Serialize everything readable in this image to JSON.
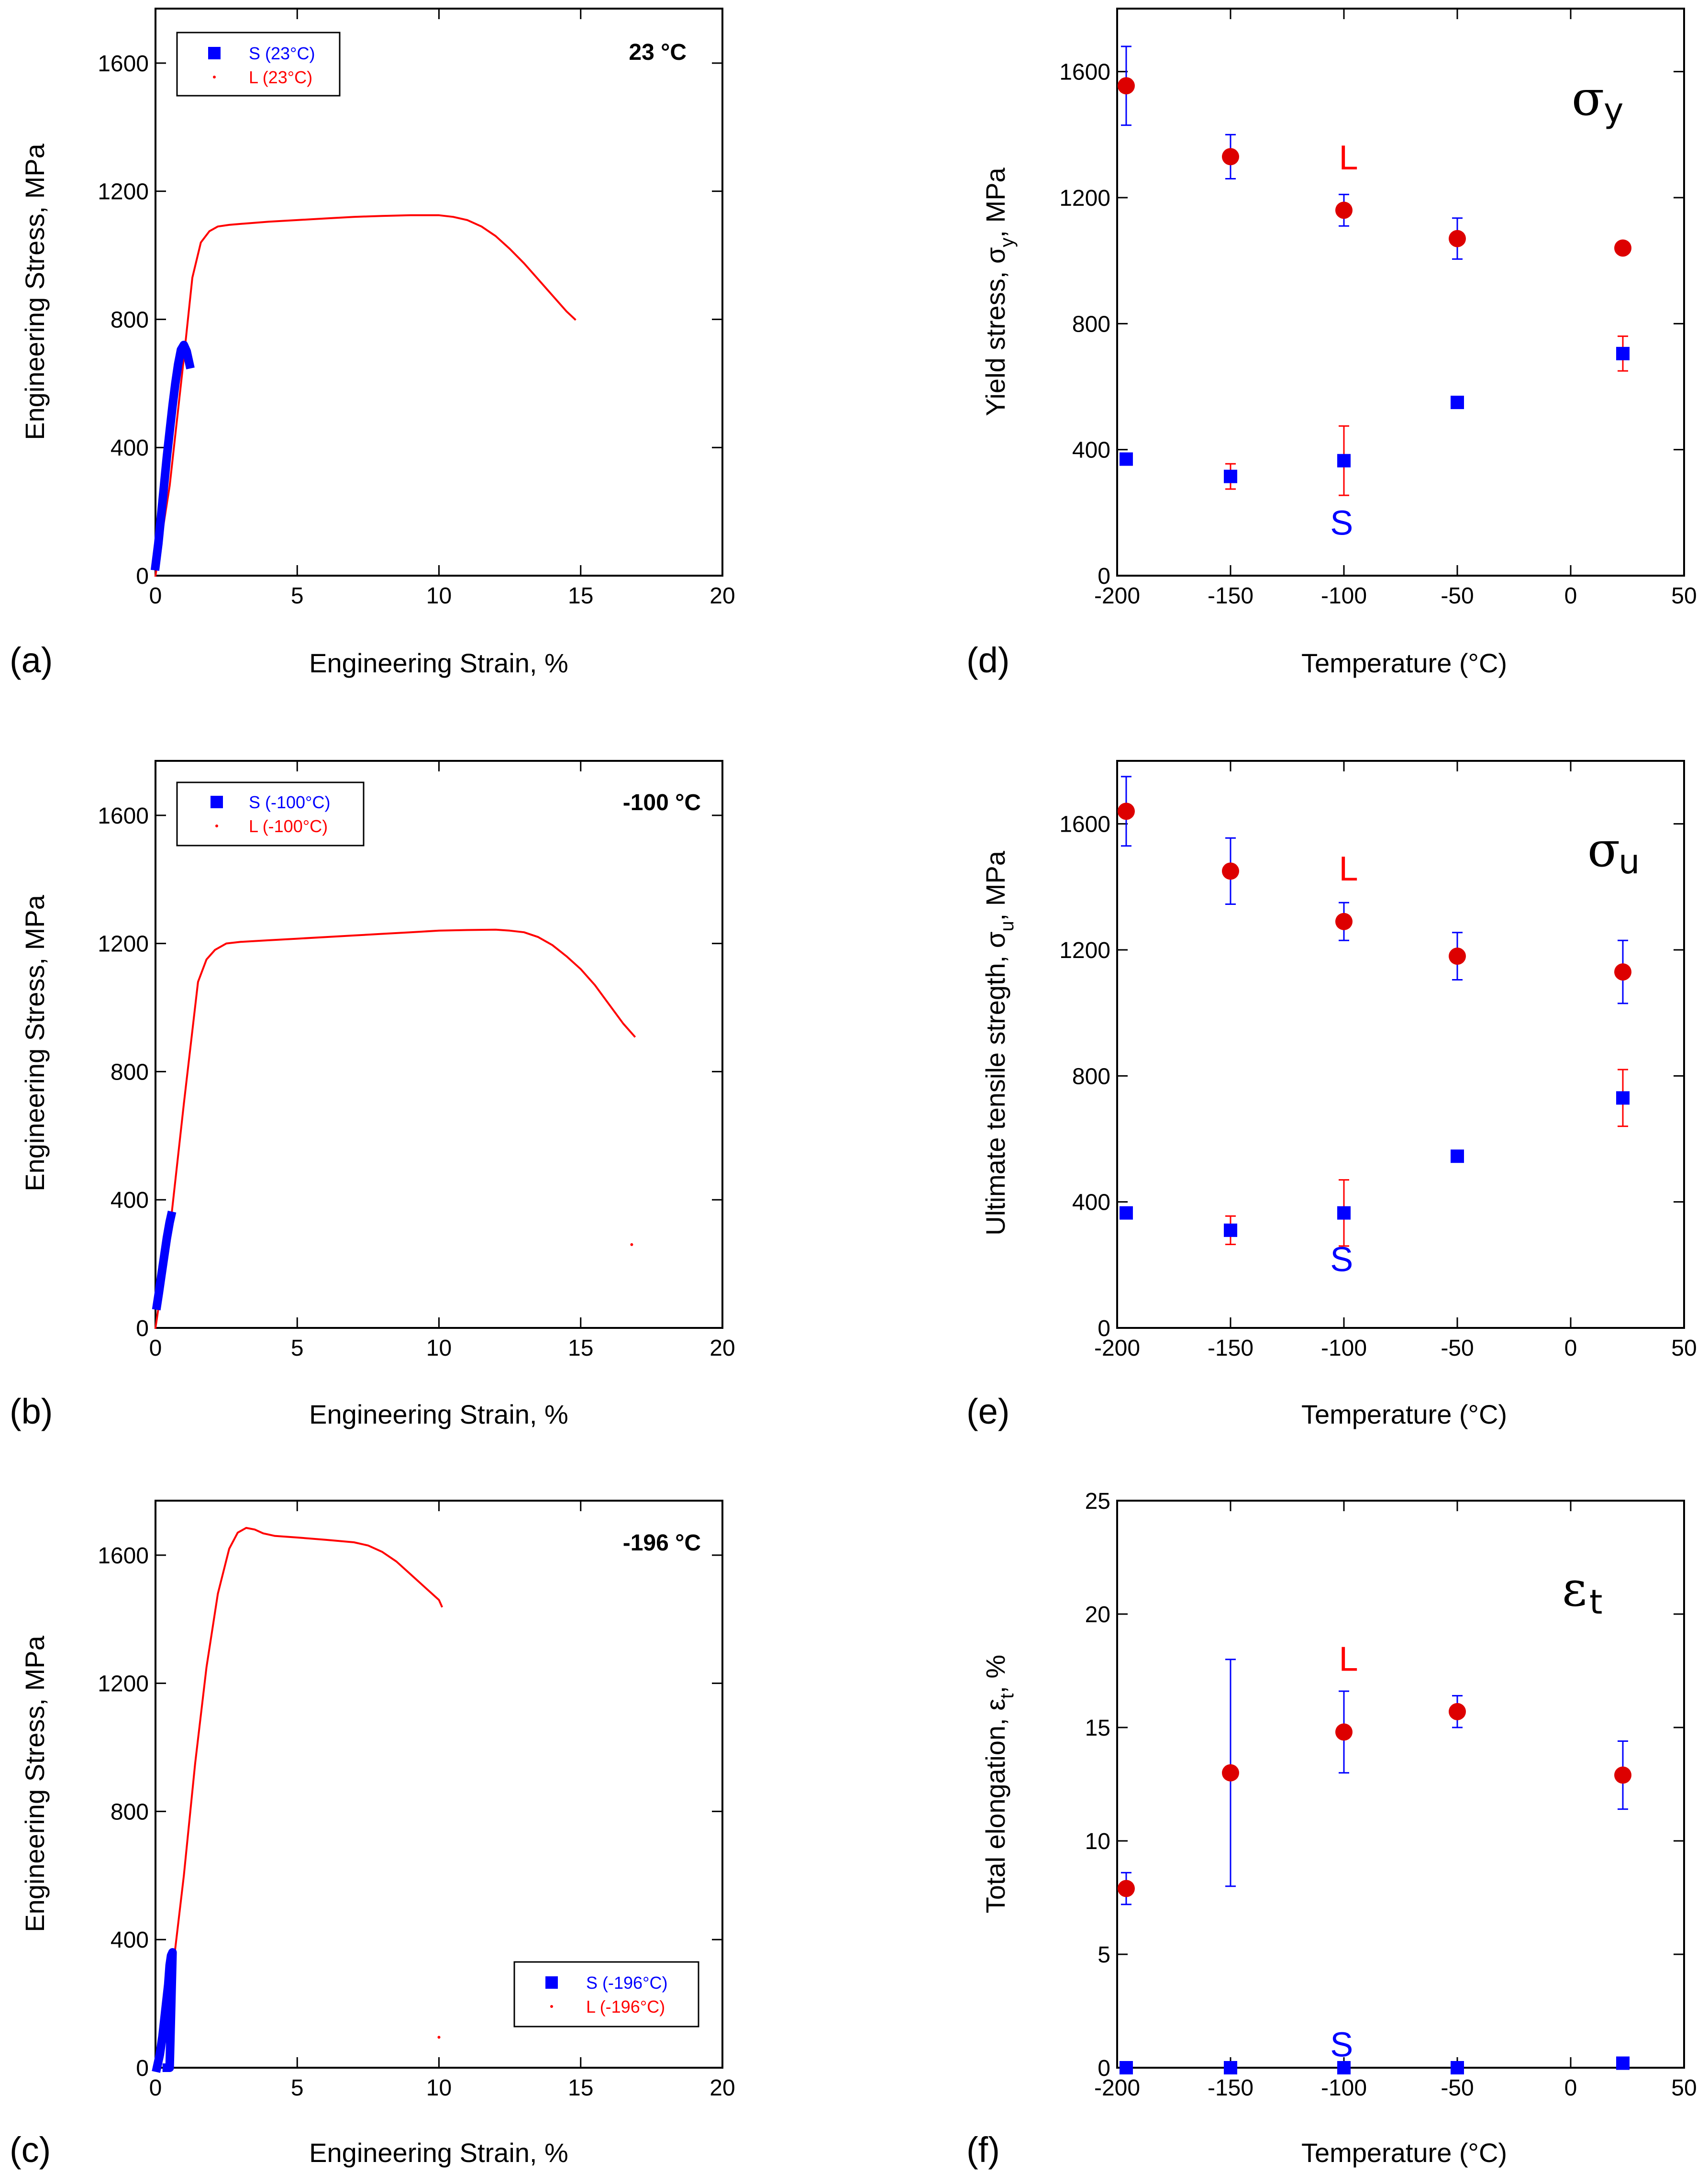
{
  "colors": {
    "S": "#0000ff",
    "L": "#ff0000",
    "L_marker": "#dd0000"
  },
  "chart_data": [
    {
      "id": "a",
      "type": "line",
      "panel_label": "(a)",
      "temperature_label": "23 °C",
      "xlabel": "Engineering Strain, %",
      "ylabel": "Engineering Stress, MPa",
      "xlim": [
        0,
        20
      ],
      "ylim": [
        0,
        1770
      ],
      "xticks": [
        "0",
        "5",
        "10",
        "15",
        "20"
      ],
      "yticks": [
        "0",
        "400",
        "800",
        "1200",
        "1600"
      ],
      "legend": {
        "position": "top-left",
        "S": "S (23°C)",
        "L": "L (23°C)"
      },
      "series": [
        {
          "name": "L (23°C)",
          "x": [
            0,
            0.5,
            1.0,
            1.3,
            1.6,
            1.9,
            2.2,
            2.6,
            3,
            4,
            5,
            6,
            7,
            8,
            9,
            10,
            10.5,
            11,
            11.5,
            12,
            12.5,
            13,
            13.5,
            14,
            14.5,
            14.8
          ],
          "y": [
            0,
            280,
            680,
            930,
            1040,
            1075,
            1090,
            1095,
            1098,
            1105,
            1110,
            1115,
            1120,
            1123,
            1125,
            1125,
            1120,
            1110,
            1090,
            1060,
            1020,
            975,
            925,
            875,
            825,
            800
          ]
        },
        {
          "name": "S (23°C)",
          "x": [
            0,
            0.1,
            0.2,
            0.3,
            0.4,
            0.5,
            0.6,
            0.7,
            0.8,
            0.9,
            1.0,
            1.1,
            1.2
          ],
          "y": [
            30,
            100,
            190,
            280,
            370,
            450,
            530,
            600,
            660,
            705,
            720,
            700,
            660
          ]
        }
      ]
    },
    {
      "id": "b",
      "type": "line",
      "panel_label": "(b)",
      "temperature_label": "-100 °C",
      "xlabel": "Engineering Strain, %",
      "ylabel": "Engineering Stress, MPa",
      "xlim": [
        0,
        20
      ],
      "ylim": [
        0,
        1770
      ],
      "xticks": [
        "0",
        "5",
        "10",
        "15",
        "20"
      ],
      "yticks": [
        "0",
        "400",
        "800",
        "1200",
        "1600"
      ],
      "legend": {
        "position": "top-left",
        "S": "S (-100°C)",
        "L": "L (-100°C)"
      },
      "series": [
        {
          "name": "L (-100°C)",
          "x": [
            0,
            0.5,
            1.0,
            1.5,
            1.8,
            2.1,
            2.5,
            3,
            4,
            5,
            6,
            7,
            8,
            9,
            10,
            11,
            12,
            12.5,
            13,
            13.5,
            14,
            14.5,
            15,
            15.5,
            16,
            16.5,
            16.9
          ],
          "y": [
            0,
            300,
            700,
            1080,
            1150,
            1180,
            1200,
            1205,
            1210,
            1215,
            1220,
            1225,
            1230,
            1235,
            1240,
            1242,
            1243,
            1240,
            1235,
            1220,
            1195,
            1160,
            1120,
            1070,
            1010,
            950,
            910
          ]
        },
        {
          "name": "S (-100°C)",
          "x": [
            0.05,
            0.12,
            0.2,
            0.3,
            0.4,
            0.5,
            0.55
          ],
          "y": [
            70,
            110,
            160,
            220,
            280,
            330,
            350
          ]
        }
      ],
      "stray_points": [
        {
          "x": 16.8,
          "y": 260
        }
      ]
    },
    {
      "id": "c",
      "type": "line",
      "panel_label": "(c)",
      "temperature_label": "-196 °C",
      "xlabel": "Engineering Strain, %",
      "ylabel": "Engineering Stress, MPa",
      "xlim": [
        0,
        20
      ],
      "ylim": [
        0,
        1770
      ],
      "xticks": [
        "0",
        "5",
        "10",
        "15",
        "20"
      ],
      "yticks": [
        "0",
        "400",
        "800",
        "1200",
        "1600"
      ],
      "legend": {
        "position": "bottom-right",
        "S": "S (-196°C)",
        "L": "L (-196°C)"
      },
      "series": [
        {
          "name": "L (-196°C)",
          "x": [
            0,
            0.3,
            0.6,
            1.0,
            1.4,
            1.8,
            2.2,
            2.6,
            2.9,
            3.2,
            3.5,
            3.8,
            4.2,
            5,
            6,
            7,
            7.5,
            8,
            8.5,
            9,
            9.5,
            10,
            10.1
          ],
          "y": [
            0,
            120,
            300,
            600,
            950,
            1250,
            1480,
            1620,
            1670,
            1685,
            1680,
            1668,
            1660,
            1655,
            1648,
            1640,
            1630,
            1610,
            1580,
            1540,
            1500,
            1460,
            1440
          ]
        },
        {
          "name": "S (-196°C)",
          "x": [
            0.05,
            0.15,
            0.25,
            0.35,
            0.45,
            0.5,
            0.55,
            0.6,
            0.5,
            0.4
          ],
          "y": [
            0,
            40,
            100,
            180,
            260,
            320,
            350,
            360,
            0,
            0
          ]
        }
      ],
      "stray_points": [
        {
          "x": 10.0,
          "y": 95
        }
      ]
    },
    {
      "id": "d",
      "type": "scatter",
      "panel_label": "(d)",
      "symbol": "σ",
      "symbol_sub": "y",
      "xlabel": "Temperature (°C)",
      "ylabel_main": "Yield stress, σ",
      "ylabel_sub": "y",
      "ylabel_unit": ", MPa",
      "xlim": [
        -200,
        50
      ],
      "ylim": [
        0,
        1800
      ],
      "xticks": [
        "-200",
        "-150",
        "-100",
        "-50",
        "0",
        "50"
      ],
      "yticks": [
        "0",
        "400",
        "800",
        "1200",
        "1600"
      ],
      "annotations": [
        {
          "text": "L",
          "x": -98,
          "y": 1290,
          "series": "L"
        },
        {
          "text": "S",
          "x": -101,
          "y": 130,
          "series": "S"
        }
      ],
      "series": [
        {
          "name": "L",
          "x": [
            -196,
            -150,
            -100,
            -50,
            23
          ],
          "y": [
            1555,
            1330,
            1160,
            1070,
            1040
          ],
          "err": [
            125,
            70,
            50,
            65,
            0
          ]
        },
        {
          "name": "S",
          "x": [
            -196,
            -150,
            -100,
            -50,
            23
          ],
          "y": [
            370,
            315,
            365,
            550,
            705
          ],
          "err": [
            0,
            40,
            110,
            0,
            55
          ]
        }
      ]
    },
    {
      "id": "e",
      "type": "scatter",
      "panel_label": "(e)",
      "symbol": "σ",
      "symbol_sub": "u",
      "xlabel": "Temperature (°C)",
      "ylabel_main": "Ultimate tensile stregth, σ",
      "ylabel_sub": "u",
      "ylabel_unit": ", MPa",
      "xlim": [
        -200,
        50
      ],
      "ylim": [
        0,
        1800
      ],
      "xticks": [
        "-200",
        "-150",
        "-100",
        "-50",
        "0",
        "50"
      ],
      "yticks": [
        "0",
        "400",
        "800",
        "1200",
        "1600"
      ],
      "annotations": [
        {
          "text": "L",
          "x": -98,
          "y": 1420,
          "series": "L"
        },
        {
          "text": "S",
          "x": -101,
          "y": 180,
          "series": "S"
        }
      ],
      "series": [
        {
          "name": "L",
          "x": [
            -196,
            -150,
            -100,
            -50,
            23
          ],
          "y": [
            1640,
            1450,
            1290,
            1180,
            1130
          ],
          "err": [
            110,
            105,
            60,
            75,
            100
          ]
        },
        {
          "name": "S",
          "x": [
            -196,
            -150,
            -100,
            -50,
            23
          ],
          "y": [
            365,
            310,
            365,
            545,
            730
          ],
          "err": [
            0,
            45,
            105,
            0,
            90
          ]
        }
      ]
    },
    {
      "id": "f",
      "type": "scatter",
      "panel_label": "(f)",
      "symbol": "ε",
      "symbol_sub": "t",
      "xlabel": "Temperature (°C)",
      "ylabel_main": "Total elongation, ε",
      "ylabel_sub": "t",
      "ylabel_unit": ", %",
      "xlim": [
        -200,
        50
      ],
      "ylim": [
        0,
        25
      ],
      "xticks": [
        "-200",
        "-150",
        "-100",
        "-50",
        "0",
        "50"
      ],
      "yticks": [
        "0",
        "5",
        "10",
        "15",
        "20",
        "25"
      ],
      "annotations": [
        {
          "text": "L",
          "x": -98,
          "y": 17.5,
          "series": "L"
        },
        {
          "text": "S",
          "x": -101,
          "y": 0.5,
          "series": "S"
        }
      ],
      "series": [
        {
          "name": "L",
          "x": [
            -196,
            -150,
            -100,
            -50,
            23
          ],
          "y": [
            7.9,
            13.0,
            14.8,
            15.7,
            12.9
          ],
          "err": [
            0.7,
            5.0,
            1.8,
            0.7,
            1.5
          ]
        },
        {
          "name": "S",
          "x": [
            -196,
            -150,
            -100,
            -50,
            23
          ],
          "y": [
            0,
            0,
            0,
            0,
            0.2
          ],
          "err": [
            0,
            0,
            0,
            0,
            0
          ]
        }
      ]
    }
  ]
}
